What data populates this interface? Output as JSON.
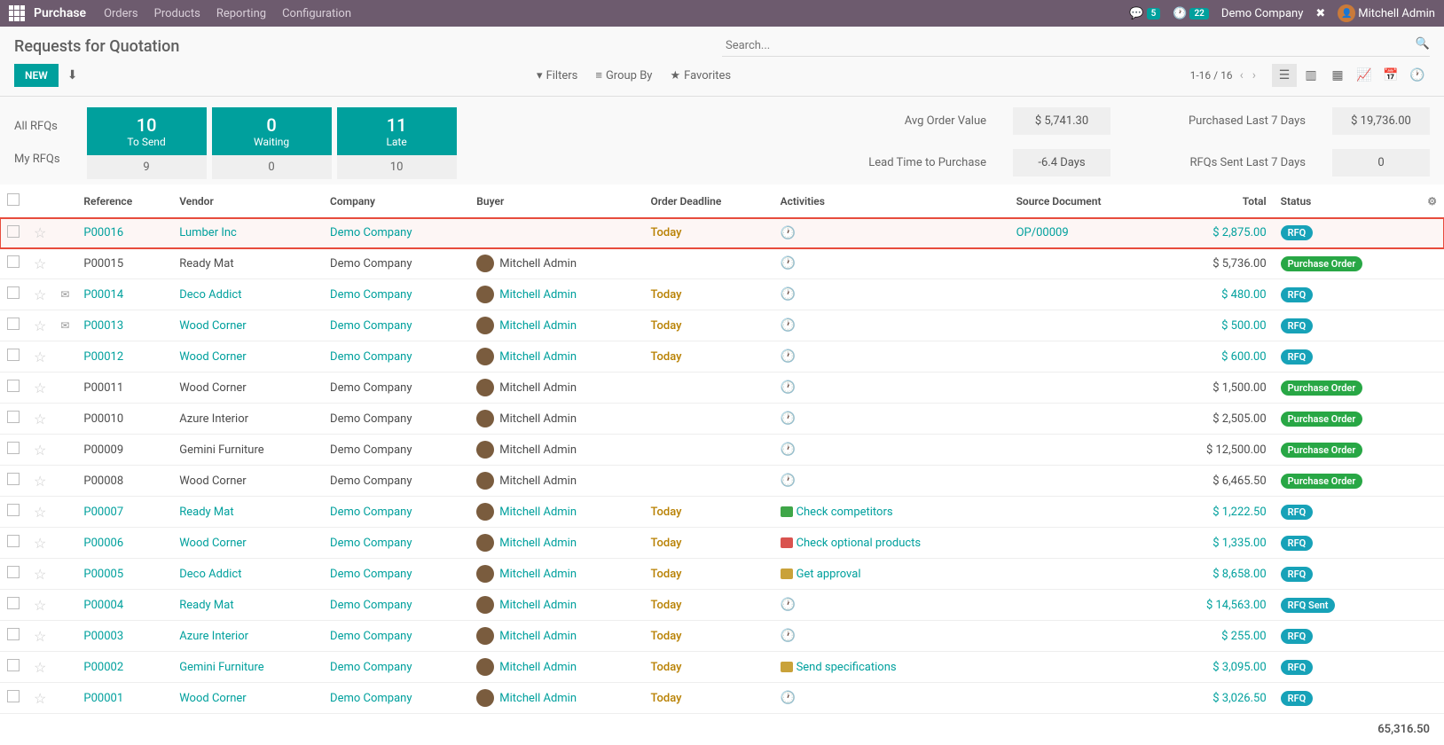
{
  "topbar": {
    "app_name": "Purchase",
    "menu": [
      "Orders",
      "Products",
      "Reporting",
      "Configuration"
    ],
    "chat_count": "5",
    "clock_count": "22",
    "company": "Demo Company",
    "user": "Mitchell Admin"
  },
  "page": {
    "title": "Requests for Quotation",
    "new_btn": "NEW",
    "search_placeholder": "Search...",
    "filters": "Filters",
    "group_by": "Group By",
    "favorites": "Favorites",
    "pager": "1-16 / 16"
  },
  "side_labels": {
    "all": "All RFQs",
    "my": "My RFQs"
  },
  "tiles": [
    {
      "big": "10",
      "lbl": "To Send",
      "bot": "9"
    },
    {
      "big": "0",
      "lbl": "Waiting",
      "bot": "0"
    },
    {
      "big": "11",
      "lbl": "Late",
      "bot": "10"
    }
  ],
  "kpi": {
    "avg_order_label": "Avg Order Value",
    "avg_order_val": "$ 5,741.30",
    "lead_label": "Lead Time to Purchase",
    "lead_val": "-6.4 Days",
    "purch_label": "Purchased Last 7 Days",
    "purch_val": "$ 19,736.00",
    "sent_label": "RFQs Sent Last 7 Days",
    "sent_val": "0"
  },
  "cols": {
    "reference": "Reference",
    "vendor": "Vendor",
    "company": "Company",
    "buyer": "Buyer",
    "deadline": "Order Deadline",
    "activities": "Activities",
    "source": "Source Document",
    "total": "Total",
    "status": "Status"
  },
  "status_labels": {
    "RFQ": "RFQ",
    "PO": "Purchase Order",
    "SENT": "RFQ Sent"
  },
  "rows": [
    {
      "ref": "P00016",
      "vendor": "Lumber Inc",
      "company": "Demo Company",
      "buyer": "",
      "deadline": "Today",
      "activity": "",
      "source": "OP/00009",
      "total": "$ 2,875.00",
      "status": "RFQ",
      "link": true,
      "highlight": true
    },
    {
      "ref": "P00015",
      "vendor": "Ready Mat",
      "company": "Demo Company",
      "buyer": "Mitchell Admin",
      "deadline": "",
      "activity": "",
      "source": "",
      "total": "$ 5,736.00",
      "status": "PO",
      "link": false,
      "msg": false
    },
    {
      "ref": "P00014",
      "vendor": "Deco Addict",
      "company": "Demo Company",
      "buyer": "Mitchell Admin",
      "deadline": "Today",
      "activity": "",
      "source": "",
      "total": "$ 480.00",
      "status": "RFQ",
      "link": true,
      "msg": true
    },
    {
      "ref": "P00013",
      "vendor": "Wood Corner",
      "company": "Demo Company",
      "buyer": "Mitchell Admin",
      "deadline": "Today",
      "activity": "",
      "source": "",
      "total": "$ 500.00",
      "status": "RFQ",
      "link": true,
      "msg": true
    },
    {
      "ref": "P00012",
      "vendor": "Wood Corner",
      "company": "Demo Company",
      "buyer": "Mitchell Admin",
      "deadline": "Today",
      "activity": "",
      "source": "",
      "total": "$ 600.00",
      "status": "RFQ",
      "link": true
    },
    {
      "ref": "P00011",
      "vendor": "Wood Corner",
      "company": "Demo Company",
      "buyer": "Mitchell Admin",
      "deadline": "",
      "activity": "",
      "source": "",
      "total": "$ 1,500.00",
      "status": "PO",
      "link": false
    },
    {
      "ref": "P00010",
      "vendor": "Azure Interior",
      "company": "Demo Company",
      "buyer": "Mitchell Admin",
      "deadline": "",
      "activity": "",
      "source": "",
      "total": "$ 2,505.00",
      "status": "PO",
      "link": false
    },
    {
      "ref": "P00009",
      "vendor": "Gemini Furniture",
      "company": "Demo Company",
      "buyer": "Mitchell Admin",
      "deadline": "",
      "activity": "",
      "source": "",
      "total": "$ 12,500.00",
      "status": "PO",
      "link": false
    },
    {
      "ref": "P00008",
      "vendor": "Wood Corner",
      "company": "Demo Company",
      "buyer": "Mitchell Admin",
      "deadline": "",
      "activity": "",
      "source": "",
      "total": "$ 6,465.50",
      "status": "PO",
      "link": false
    },
    {
      "ref": "P00007",
      "vendor": "Ready Mat",
      "company": "Demo Company",
      "buyer": "Mitchell Admin",
      "deadline": "Today",
      "activity": "Check competitors",
      "act_color": "green",
      "source": "",
      "total": "$ 1,222.50",
      "status": "RFQ",
      "link": true
    },
    {
      "ref": "P00006",
      "vendor": "Wood Corner",
      "company": "Demo Company",
      "buyer": "Mitchell Admin",
      "deadline": "Today",
      "activity": "Check optional products",
      "act_color": "red",
      "source": "",
      "total": "$ 1,335.00",
      "status": "RFQ",
      "link": true
    },
    {
      "ref": "P00005",
      "vendor": "Deco Addict",
      "company": "Demo Company",
      "buyer": "Mitchell Admin",
      "deadline": "Today",
      "activity": "Get approval",
      "act_color": "yellow",
      "source": "",
      "total": "$ 8,658.00",
      "status": "RFQ",
      "link": true
    },
    {
      "ref": "P00004",
      "vendor": "Ready Mat",
      "company": "Demo Company",
      "buyer": "Mitchell Admin",
      "deadline": "Today",
      "activity": "",
      "source": "",
      "total": "$ 14,563.00",
      "status": "SENT",
      "link": true
    },
    {
      "ref": "P00003",
      "vendor": "Azure Interior",
      "company": "Demo Company",
      "buyer": "Mitchell Admin",
      "deadline": "Today",
      "activity": "",
      "source": "",
      "total": "$ 255.00",
      "status": "RFQ",
      "link": true
    },
    {
      "ref": "P00002",
      "vendor": "Gemini Furniture",
      "company": "Demo Company",
      "buyer": "Mitchell Admin",
      "deadline": "Today",
      "activity": "Send specifications",
      "act_color": "yellow",
      "source": "",
      "total": "$ 3,095.00",
      "status": "RFQ",
      "link": true
    },
    {
      "ref": "P00001",
      "vendor": "Wood Corner",
      "company": "Demo Company",
      "buyer": "Mitchell Admin",
      "deadline": "Today",
      "activity": "",
      "source": "",
      "total": "$ 3,026.50",
      "status": "RFQ",
      "link": true
    }
  ],
  "grand_total": "65,316.50"
}
